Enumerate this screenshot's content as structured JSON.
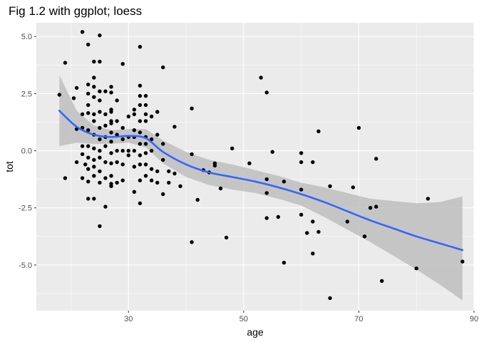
{
  "chart_data": {
    "type": "scatter",
    "title": "Fig 1.2 with ggplot; loess",
    "xlabel": "age",
    "ylabel": "tot",
    "xlim": [
      14,
      90
    ],
    "ylim": [
      -7.0,
      5.6
    ],
    "x_ticks": [
      30,
      50,
      70,
      90
    ],
    "y_ticks": [
      5.0,
      2.5,
      0.0,
      -2.5,
      -5.0
    ],
    "x_tick_labels": [
      "30",
      "50",
      "70",
      "90"
    ],
    "y_tick_labels": [
      "5.0",
      "2.5",
      "0.0",
      "-2.5",
      "-5.0"
    ],
    "grid": true,
    "colors": {
      "panel_background": "#ebebeb",
      "grid": "#ffffff",
      "points": "#000000",
      "smooth_line": "#3366ff",
      "confidence_band": "#bebebe"
    },
    "points": [
      [
        18,
        2.45
      ],
      [
        19,
        3.85
      ],
      [
        19,
        -1.2
      ],
      [
        20.5,
        2.3
      ],
      [
        21,
        2.75
      ],
      [
        21,
        0.95
      ],
      [
        21,
        -0.5
      ],
      [
        22,
        5.2
      ],
      [
        22,
        1.6
      ],
      [
        22,
        1.0
      ],
      [
        22,
        0.2
      ],
      [
        22,
        -0.15
      ],
      [
        22,
        -1.2
      ],
      [
        22.5,
        -0.6
      ],
      [
        23,
        4.65
      ],
      [
        23,
        2.9
      ],
      [
        23,
        2.5
      ],
      [
        23,
        2.0
      ],
      [
        23,
        1.65
      ],
      [
        23,
        0.9
      ],
      [
        23,
        0.2
      ],
      [
        23,
        -0.3
      ],
      [
        23,
        -0.8
      ],
      [
        23,
        -1.35
      ],
      [
        23,
        -2.1
      ],
      [
        24,
        3.9
      ],
      [
        24,
        3.2
      ],
      [
        24,
        2.8
      ],
      [
        24,
        2.35
      ],
      [
        24,
        1.6
      ],
      [
        24,
        1.3
      ],
      [
        24,
        0.7
      ],
      [
        24,
        0.1
      ],
      [
        24,
        -0.4
      ],
      [
        24,
        -0.7
      ],
      [
        24,
        -1.1
      ],
      [
        24,
        -2.1
      ],
      [
        25,
        5.05
      ],
      [
        25,
        3.9
      ],
      [
        25,
        2.6
      ],
      [
        25,
        2.2
      ],
      [
        25,
        1.7
      ],
      [
        25,
        1.0
      ],
      [
        25,
        0.5
      ],
      [
        25,
        0.0
      ],
      [
        25,
        -0.3
      ],
      [
        25,
        -0.9
      ],
      [
        25,
        -1.4
      ],
      [
        25,
        -3.3
      ],
      [
        26,
        2.6
      ],
      [
        26,
        1.6
      ],
      [
        26,
        1.1
      ],
      [
        26,
        0.6
      ],
      [
        26,
        0.2
      ],
      [
        26,
        -0.5
      ],
      [
        26,
        -1.2
      ],
      [
        26,
        -2.45
      ],
      [
        27,
        2.8
      ],
      [
        27,
        2.55
      ],
      [
        27,
        1.8
      ],
      [
        27,
        1.7
      ],
      [
        27,
        1.3
      ],
      [
        27,
        1.2
      ],
      [
        27,
        0.8
      ],
      [
        27,
        0.4
      ],
      [
        27,
        -0.1
      ],
      [
        27,
        -0.55
      ],
      [
        27,
        -1.1
      ],
      [
        27,
        -1.45
      ],
      [
        27,
        -1.55
      ],
      [
        28,
        2.2
      ],
      [
        28,
        1.3
      ],
      [
        28,
        0.7
      ],
      [
        28,
        0.0
      ],
      [
        28,
        -0.5
      ],
      [
        28,
        -1.4
      ],
      [
        29,
        3.8
      ],
      [
        29,
        1.0
      ],
      [
        29,
        0.5
      ],
      [
        29,
        0.0
      ],
      [
        29,
        -0.6
      ],
      [
        29,
        -1.3
      ],
      [
        30,
        1.5
      ],
      [
        30,
        0.6
      ],
      [
        30,
        0.0
      ],
      [
        30,
        -0.2
      ],
      [
        31,
        1.8
      ],
      [
        31,
        1.6
      ],
      [
        31,
        0.9
      ],
      [
        31,
        0.6
      ],
      [
        31,
        0.0
      ],
      [
        31,
        -0.7
      ],
      [
        31,
        -1.8
      ],
      [
        32,
        4.55
      ],
      [
        32,
        2.85
      ],
      [
        32,
        2.4
      ],
      [
        32,
        2.0
      ],
      [
        32,
        1.3
      ],
      [
        32,
        0.8
      ],
      [
        32,
        0.3
      ],
      [
        32,
        -0.2
      ],
      [
        32,
        -0.6
      ],
      [
        32,
        -1.3
      ],
      [
        32,
        -2.3
      ],
      [
        33,
        2.4
      ],
      [
        33,
        2.0
      ],
      [
        33,
        1.6
      ],
      [
        33,
        1.3
      ],
      [
        33,
        0.6
      ],
      [
        33,
        0.3
      ],
      [
        33,
        -0.1
      ],
      [
        33,
        -0.6
      ],
      [
        33,
        -1.1
      ],
      [
        34,
        1.5
      ],
      [
        34,
        0.5
      ],
      [
        34,
        0.0
      ],
      [
        34,
        -0.8
      ],
      [
        34,
        -1.3
      ],
      [
        35,
        1.7
      ],
      [
        35,
        0.7
      ],
      [
        35,
        -0.9
      ],
      [
        35,
        -1.4
      ],
      [
        36,
        3.65
      ],
      [
        36,
        0.3
      ],
      [
        36,
        -0.4
      ],
      [
        36,
        -1.9
      ],
      [
        37,
        -0.9
      ],
      [
        37,
        -1.4
      ],
      [
        38,
        1.05
      ],
      [
        38,
        -1.0
      ],
      [
        39,
        -1.55
      ],
      [
        41,
        1.85
      ],
      [
        41,
        -0.15
      ],
      [
        41,
        -4.0
      ],
      [
        42,
        -2.15
      ],
      [
        43,
        -0.85
      ],
      [
        44,
        -0.95
      ],
      [
        45,
        -0.55
      ],
      [
        45,
        -0.65
      ],
      [
        46,
        -1.65
      ],
      [
        47,
        -3.8
      ],
      [
        48,
        0.1
      ],
      [
        51,
        -0.55
      ],
      [
        53,
        3.2
      ],
      [
        54,
        2.55
      ],
      [
        54,
        -1.25
      ],
      [
        54,
        -1.85
      ],
      [
        54,
        -2.95
      ],
      [
        55,
        -0.05
      ],
      [
        56,
        -2.9
      ],
      [
        57,
        -1.35
      ],
      [
        57,
        -4.9
      ],
      [
        60,
        -0.1
      ],
      [
        60,
        -0.5
      ],
      [
        60,
        -1.7
      ],
      [
        60,
        -2.8
      ],
      [
        61,
        -3.6
      ],
      [
        62,
        -0.5
      ],
      [
        62,
        -3.1
      ],
      [
        62,
        -4.5
      ],
      [
        63,
        0.85
      ],
      [
        63,
        -3.55
      ],
      [
        65,
        -1.55
      ],
      [
        65,
        -6.45
      ],
      [
        68,
        -3.1
      ],
      [
        69,
        -1.6
      ],
      [
        70,
        1.0
      ],
      [
        71,
        -3.75
      ],
      [
        72,
        -2.5
      ],
      [
        73,
        -0.35
      ],
      [
        73,
        -2.45
      ],
      [
        74,
        -5.7
      ],
      [
        80,
        -5.15
      ],
      [
        82,
        -2.1
      ],
      [
        88,
        -4.85
      ]
    ],
    "smooth": {
      "method": "loess",
      "x": [
        18,
        21,
        24,
        27,
        30,
        33,
        36,
        40,
        44,
        48,
        52,
        56,
        60,
        64,
        68,
        72,
        76,
        80,
        84,
        88
      ],
      "y": [
        1.75,
        1.05,
        0.7,
        0.6,
        0.65,
        0.55,
        -0.05,
        -0.6,
        -0.95,
        -1.15,
        -1.35,
        -1.6,
        -1.9,
        -2.25,
        -2.65,
        -3.05,
        -3.4,
        -3.75,
        -4.05,
        -4.35
      ],
      "lower": [
        0.2,
        0.35,
        0.3,
        0.3,
        0.35,
        0.15,
        -0.55,
        -1.15,
        -1.5,
        -1.7,
        -1.85,
        -2.1,
        -2.4,
        -2.9,
        -3.45,
        -4.0,
        -4.6,
        -5.2,
        -5.85,
        -6.55
      ],
      "upper": [
        3.3,
        1.75,
        1.1,
        0.9,
        0.95,
        0.95,
        0.45,
        -0.05,
        -0.4,
        -0.6,
        -0.85,
        -1.1,
        -1.4,
        -1.6,
        -1.85,
        -2.1,
        -2.2,
        -2.3,
        -2.25,
        -2.0
      ]
    }
  }
}
